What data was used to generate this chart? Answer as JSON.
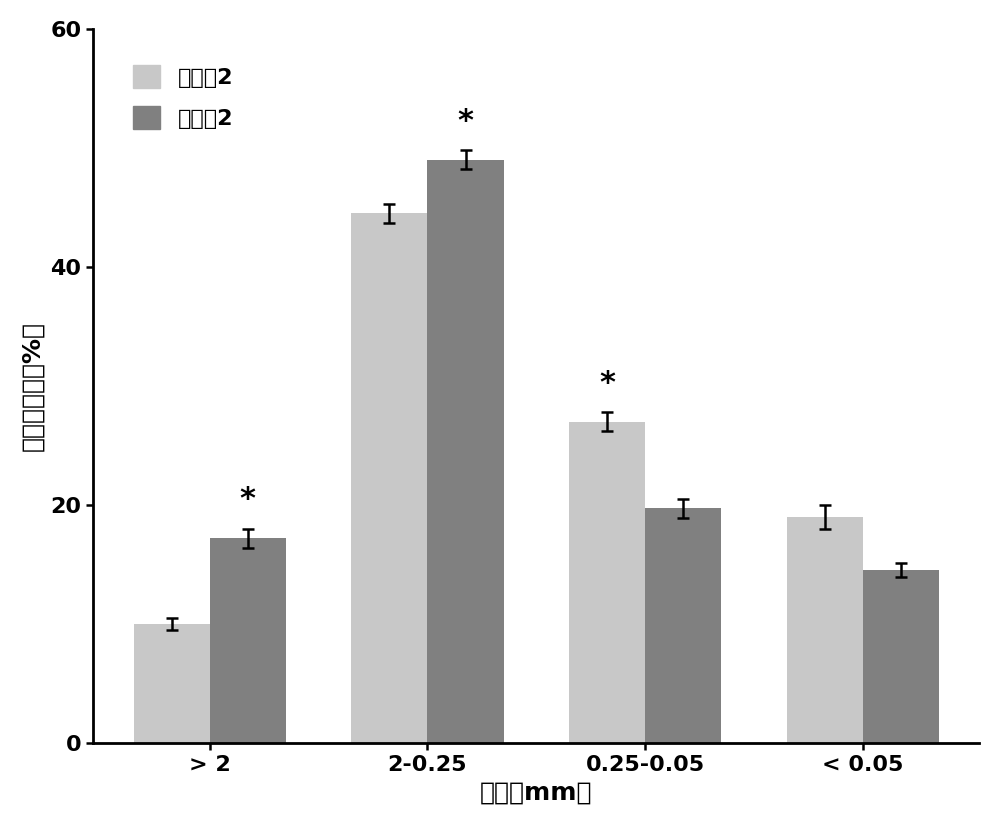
{
  "categories": [
    "> 2",
    "2-0.25",
    "0.25-0.05",
    "< 0.05"
  ],
  "series1_label": "对比例2",
  "series2_label": "实施例2",
  "series1_values": [
    10.0,
    44.5,
    27.0,
    19.0
  ],
  "series2_values": [
    17.2,
    49.0,
    19.7,
    14.5
  ],
  "series1_errors": [
    0.5,
    0.8,
    0.8,
    1.0
  ],
  "series2_errors": [
    0.8,
    0.8,
    0.8,
    0.6
  ],
  "series1_color": "#c8c8c8",
  "series2_color": "#808080",
  "ylabel": "团聚体分布（%）",
  "xlabel": "粒径（mm）",
  "ylim": [
    0,
    60
  ],
  "yticks": [
    0,
    20,
    40,
    60
  ],
  "sig_above_bar2": [
    true,
    true,
    false,
    false
  ],
  "sig_above_bar1": [
    false,
    false,
    true,
    false
  ],
  "bar_width": 0.35,
  "background_color": "#ffffff",
  "label_fontsize": 18,
  "tick_fontsize": 16,
  "legend_fontsize": 16
}
